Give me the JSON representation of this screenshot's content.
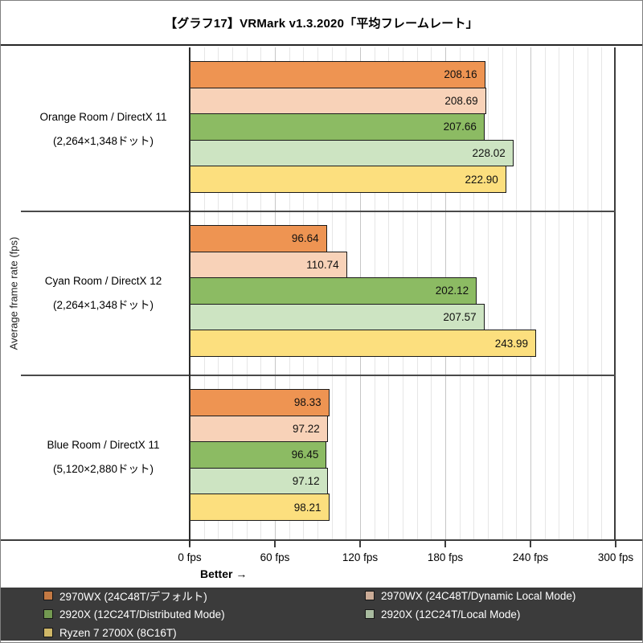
{
  "title": "【グラフ17】VRMark v1.3.2020「平均フレームレート」",
  "y_axis_title": "Average frame rate (fps)",
  "better_label": "Better →",
  "chart_data": {
    "type": "bar",
    "orientation": "horizontal",
    "title": "【グラフ17】VRMark v1.3.2020「平均フレームレート」",
    "ylabel": "Average frame rate (fps)",
    "axis": {
      "min": 0,
      "max": 300,
      "major_unit": 60,
      "minor_unit": 10,
      "unit": "fps"
    },
    "x_tick_labels": [
      "0 fps",
      "60 fps",
      "120 fps",
      "180 fps",
      "240 fps",
      "300 fps"
    ],
    "grid": "minor-vertical",
    "legend_position": "bottom",
    "series": [
      {
        "name": "2970WX (24C48T/デフォルト)",
        "color": "#EE9452"
      },
      {
        "name": "2970WX (24C48T/Dynamic Local Mode)",
        "color": "#F8D2B8"
      },
      {
        "name": "2920X (12C24T/Distributed Mode)",
        "color": "#8CBB63"
      },
      {
        "name": "2920X (12C24T/Local Mode)",
        "color": "#CDE4C2"
      },
      {
        "name": "Ryzen 7 2700X (8C16T)",
        "color": "#FCDF7E"
      }
    ],
    "groups": [
      {
        "label": "Orange Room / DirectX 11",
        "sublabel": "(2,264×1,348ドット)",
        "values": [
          "208.16",
          "208.69",
          "207.66",
          "228.02",
          "222.90"
        ]
      },
      {
        "label": "Cyan Room / DirectX 12",
        "sublabel": "(2,264×1,348ドット)",
        "values": [
          "96.64",
          "110.74",
          "202.12",
          "207.57",
          "243.99"
        ]
      },
      {
        "label": "Blue Room / DirectX 11",
        "sublabel": "(5,120×2,880ドット)",
        "values": [
          "98.33",
          "97.22",
          "96.45",
          "97.12",
          "98.21"
        ]
      }
    ]
  },
  "structure_colors": {
    "legend_background": "#3b3b3b",
    "axis_line": "#3d3d3d",
    "minor_gridline": "#e6e6e6",
    "major_gridline": "#c6c6c6"
  }
}
